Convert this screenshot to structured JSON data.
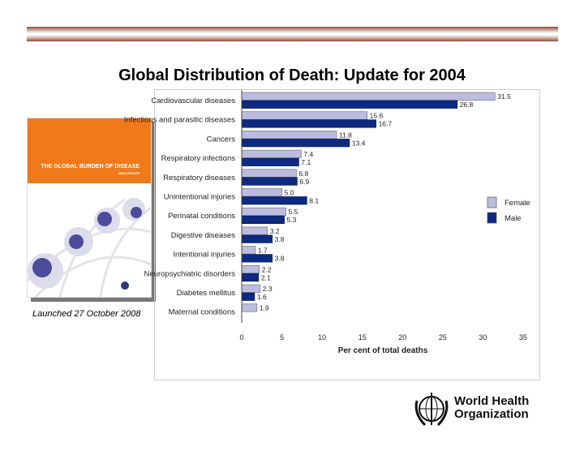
{
  "slide": {
    "title": "Global Distribution of Death: Update for 2004",
    "caption": "Launched 27 October 2008",
    "book_cover": {
      "title": "THE GLOBAL BURDEN OF DISEASE",
      "subtitle": "2004 UPDATE"
    },
    "logo": {
      "line1": "World Health",
      "line2": "Organization"
    }
  },
  "colors": {
    "female": "#bcbce0",
    "male": "#0d2a80",
    "book_orange": "#f07a1a"
  },
  "chart_data": {
    "type": "bar",
    "orientation": "horizontal",
    "categories": [
      "Cardiovascular diseases",
      "Infectious and parasitic diseases",
      "Cancers",
      "Respiratory infections",
      "Respiratory diseases",
      "Unintentional injuries",
      "Perinatal conditions",
      "Digestive diseases",
      "Intentional injuries",
      "Neuropsychiatric disorders",
      "Diabetes mellitus",
      "Maternal conditions"
    ],
    "series": [
      {
        "name": "Female",
        "values": [
          31.5,
          15.6,
          11.8,
          7.4,
          6.8,
          5.0,
          5.5,
          3.2,
          1.7,
          2.2,
          2.3,
          1.9
        ],
        "labels": [
          "31.5",
          "15.6",
          "11.8",
          "7.4",
          "6.8",
          "5.0",
          "5.5",
          "3.2",
          "1.7",
          "2.2",
          "2.3",
          "1.9"
        ]
      },
      {
        "name": "Male",
        "values": [
          26.8,
          16.7,
          13.4,
          7.1,
          6.9,
          8.1,
          5.3,
          3.8,
          3.8,
          2.1,
          1.6,
          null
        ],
        "labels": [
          "26.8",
          "16.7",
          "13.4",
          "7.1",
          "6.9",
          "8.1",
          "5.3",
          "3.8",
          "3.8",
          "2.1",
          "1.6",
          ""
        ]
      }
    ],
    "xlabel": "Per cent of total deaths",
    "xlim": [
      0,
      35
    ],
    "xticks": [
      "0",
      "5",
      "10",
      "15",
      "20",
      "25",
      "30",
      "35"
    ],
    "grid": false,
    "legend": "right"
  }
}
